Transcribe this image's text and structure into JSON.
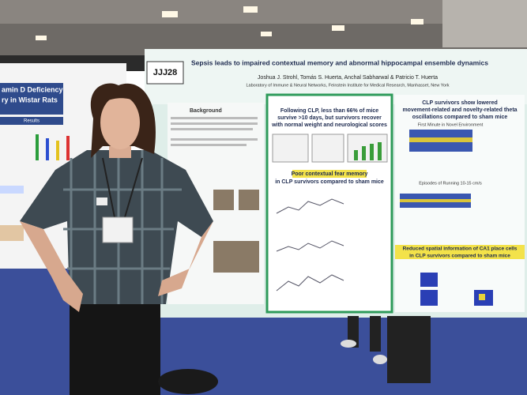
{
  "left_poster": {
    "title_lines": [
      "amin D Deficiency",
      "ry in Wistar Rats"
    ],
    "section": "Results"
  },
  "main_poster": {
    "id": "JJJ28",
    "title": "Sepsis leads to impaired contextual memory and abnormal hippocampal ensemble dynamics",
    "authors": "Joshua J. Strohl, Tomás S. Huerta, Anchal Sabharwal & Patricio T. Huerta",
    "affiliation": "Laboratory of Immune & Neural Networks, Feinstein Institute for Medical Research, Manhasset, New York",
    "background": "Background",
    "survival_heading": [
      "Following CLP, less than 66% of mice",
      "survive >10 days, but survivors recover",
      "with normal weight and neurological scores"
    ],
    "fear_heading": [
      "Poor contextual fear memory",
      "in CLP survivors compared to sham mice"
    ],
    "theta_heading": [
      "CLP survivors show lowered",
      "movement-related and novelty-related theta",
      "oscillations compared to sham mice"
    ],
    "first_minute": "First Minute in Novel Environment",
    "running": "Episodes of Running 10-15 cm/s",
    "place_heading": [
      "Reduced spatial information of CA1 place cells",
      "in CLP survivors compared to sham mice"
    ]
  }
}
